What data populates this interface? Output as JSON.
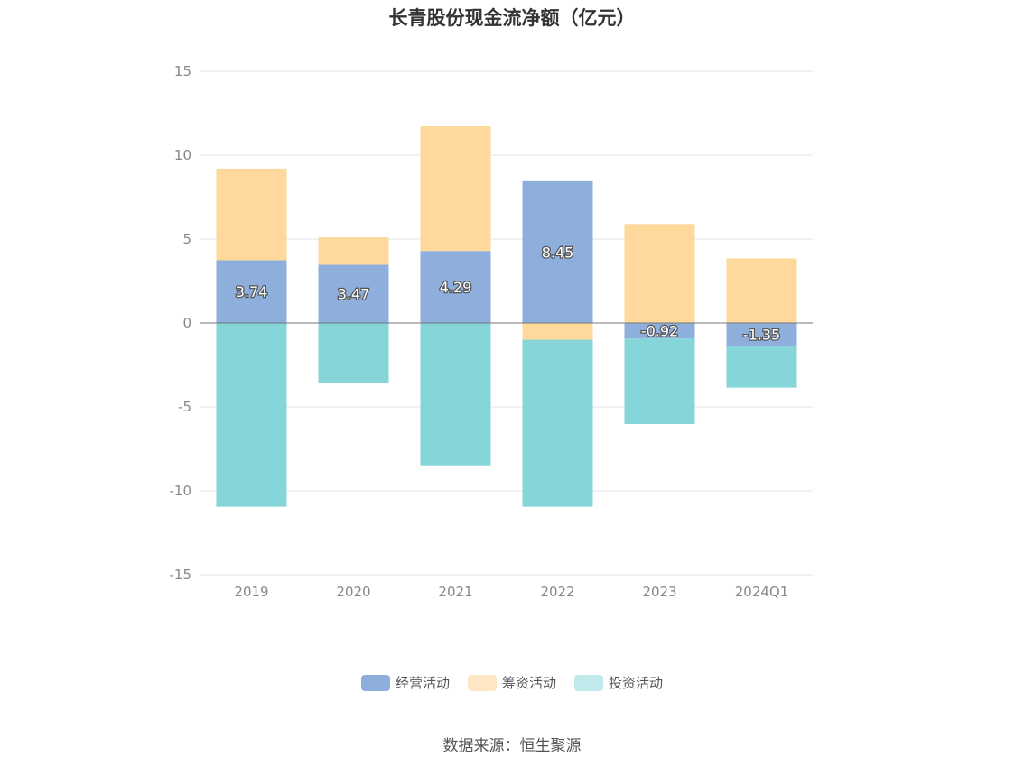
{
  "source_text": "数据来源：恒生聚源",
  "chart_data": {
    "type": "bar",
    "stacked": true,
    "title": "长青股份现金流净额（亿元）",
    "categories": [
      "2019",
      "2020",
      "2021",
      "2022",
      "2023",
      "2024Q1"
    ],
    "ylim": [
      -15,
      15
    ],
    "yticks": [
      15,
      10,
      5,
      0,
      -5,
      -10,
      -15
    ],
    "grid": true,
    "legend_position": "bottom",
    "series": [
      {
        "name": "经营活动",
        "color": "#8eaedc",
        "values": [
          3.74,
          3.47,
          4.29,
          8.45,
          -0.92,
          -1.35
        ],
        "labels": [
          "3.74",
          "3.47",
          "4.29",
          "8.45",
          "-0.92",
          "-1.35"
        ]
      },
      {
        "name": "筹资活动",
        "color": "#ffd99c",
        "legend_color": "#fde6c3",
        "values": [
          5.46,
          1.63,
          7.43,
          -1.0,
          5.9,
          3.85
        ]
      },
      {
        "name": "投资活动",
        "color": "#86d6d9",
        "legend_color": "#bfe9ea",
        "values": [
          -10.95,
          -3.55,
          -8.48,
          -9.95,
          -5.1,
          -2.5
        ]
      }
    ]
  }
}
